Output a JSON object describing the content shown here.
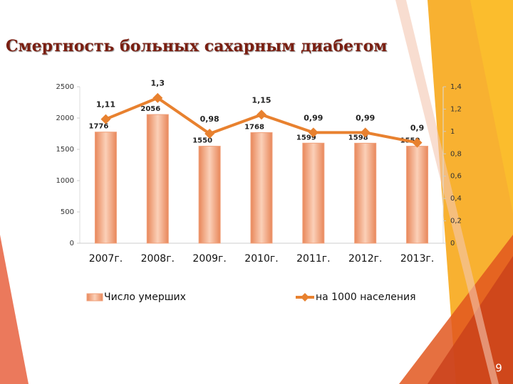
{
  "chart_data": {
    "type": "bar_line",
    "title": "Смертность больных сахарным диабетом",
    "categories": [
      "2007г.",
      "2008г.",
      "2009г.",
      "2010г.",
      "2011г.",
      "2012г.",
      "2013г."
    ],
    "series": [
      {
        "name": "Число умерших",
        "color": "#f0a07a",
        "values": [
          1776,
          2056,
          1550,
          1768,
          1599,
          1598,
          1550
        ]
      },
      {
        "name": "на 1000 населения",
        "color": "#e8812f",
        "axis": "y2",
        "values": [
          1.11,
          1.3,
          0.98,
          1.15,
          0.99,
          0.99,
          0.9
        ],
        "value_labels": [
          "1,11",
          "1,3",
          "0,98",
          "1,15",
          "0,99",
          "0,99",
          "0,9"
        ]
      }
    ],
    "ylim": [
      0,
      2500
    ],
    "yticks": [
      0,
      500,
      1000,
      1500,
      2000,
      2500
    ],
    "y2lim": [
      0,
      1.4
    ],
    "y2ticks": [
      0,
      {
        "value": 0.2,
        "label": "0,2"
      },
      {
        "value": 0.4,
        "label": "0,4"
      },
      {
        "value": 0.6,
        "label": "0,6"
      },
      {
        "value": 0.8,
        "label": "0,8"
      },
      1,
      {
        "value": 1.2,
        "label": "1,2"
      },
      {
        "value": 1.4,
        "label": "1,4"
      }
    ],
    "legend": "bottom"
  },
  "slide_number": "9"
}
